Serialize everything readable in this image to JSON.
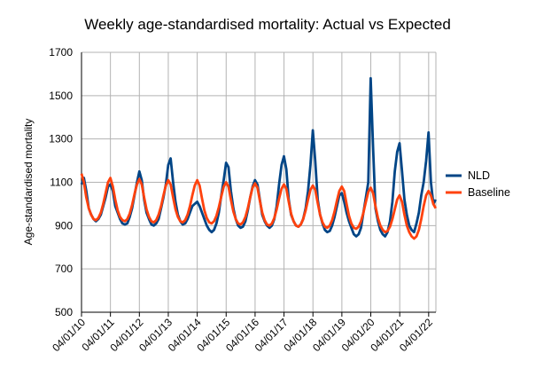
{
  "chart_data": {
    "type": "line",
    "title": "Weekly age-standardised mortality: Actual vs Expected",
    "xlabel": "",
    "ylabel": "Age-standardised mortality",
    "ylim": [
      500,
      1700
    ],
    "yticks": [
      500,
      700,
      900,
      1100,
      1300,
      1500,
      1700
    ],
    "xtick_labels": [
      "04/01/10",
      "04/01/11",
      "04/01/12",
      "04/01/13",
      "04/01/14",
      "04/01/15",
      "04/01/16",
      "04/01/17",
      "04/01/18",
      "04/01/19",
      "04/01/20",
      "04/01/21",
      "04/01/22"
    ],
    "grid": true,
    "legend_position": "right",
    "colors": {
      "NLD": "#004586",
      "Baseline": "#ff420e",
      "grid": "#b3b3b3",
      "axis": "#000000"
    },
    "series": [
      {
        "name": "NLD",
        "x_step_years": 0.0833,
        "values": [
          1090,
          1120,
          1060,
          980,
          950,
          930,
          920,
          930,
          950,
          990,
          1030,
          1080,
          1090,
          1060,
          990,
          960,
          930,
          910,
          905,
          910,
          940,
          980,
          1040,
          1100,
          1150,
          1110,
          1020,
          960,
          930,
          905,
          900,
          910,
          930,
          980,
          1030,
          1090,
          1180,
          1210,
          1100,
          1010,
          950,
          920,
          905,
          910,
          930,
          960,
          990,
          1000,
          1010,
          990,
          960,
          930,
          900,
          880,
          870,
          880,
          910,
          960,
          1040,
          1110,
          1190,
          1170,
          1060,
          980,
          930,
          900,
          890,
          895,
          920,
          970,
          1030,
          1080,
          1110,
          1090,
          1020,
          950,
          920,
          900,
          890,
          900,
          930,
          990,
          1090,
          1180,
          1220,
          1160,
          1020,
          950,
          920,
          900,
          895,
          905,
          930,
          980,
          1060,
          1180,
          1340,
          1200,
          1020,
          950,
          910,
          880,
          870,
          875,
          900,
          940,
          990,
          1040,
          1050,
          1010,
          960,
          920,
          890,
          860,
          850,
          860,
          890,
          960,
          1030,
          1100,
          1580,
          1260,
          980,
          920,
          880,
          860,
          850,
          870,
          920,
          1010,
          1150,
          1240,
          1280,
          1150,
          1020,
          950,
          900,
          880,
          870,
          910,
          960,
          1040,
          1100,
          1200,
          1330,
          1100,
          1000,
          1020
        ]
      },
      {
        "name": "Baseline",
        "x_step_years": 0.0833,
        "values": [
          1140,
          1100,
          1030,
          980,
          950,
          930,
          925,
          935,
          960,
          1000,
          1050,
          1100,
          1120,
          1080,
          1020,
          970,
          940,
          925,
          920,
          930,
          955,
          995,
          1045,
          1090,
          1115,
          1090,
          1030,
          975,
          940,
          920,
          915,
          925,
          950,
          990,
          1040,
          1085,
          1110,
          1090,
          1030,
          975,
          940,
          920,
          915,
          925,
          950,
          990,
          1040,
          1085,
          1110,
          1085,
          1025,
          970,
          935,
          915,
          910,
          920,
          945,
          985,
          1035,
          1080,
          1100,
          1080,
          1020,
          965,
          930,
          910,
          905,
          915,
          940,
          980,
          1030,
          1075,
          1095,
          1075,
          1015,
          960,
          925,
          905,
          900,
          910,
          935,
          975,
          1025,
          1070,
          1090,
          1070,
          1010,
          955,
          920,
          900,
          895,
          905,
          930,
          970,
          1020,
          1065,
          1085,
          1065,
          1005,
          950,
          915,
          895,
          890,
          900,
          925,
          965,
          1015,
          1060,
          1080,
          1060,
          1000,
          945,
          910,
          890,
          885,
          895,
          920,
          960,
          1010,
          1055,
          1075,
          1050,
          990,
          935,
          900,
          880,
          870,
          875,
          895,
          930,
          975,
          1020,
          1040,
          1010,
          950,
          900,
          870,
          850,
          840,
          850,
          880,
          930,
          990,
          1040,
          1060,
          1040,
          1000,
          980
        ]
      }
    ]
  }
}
